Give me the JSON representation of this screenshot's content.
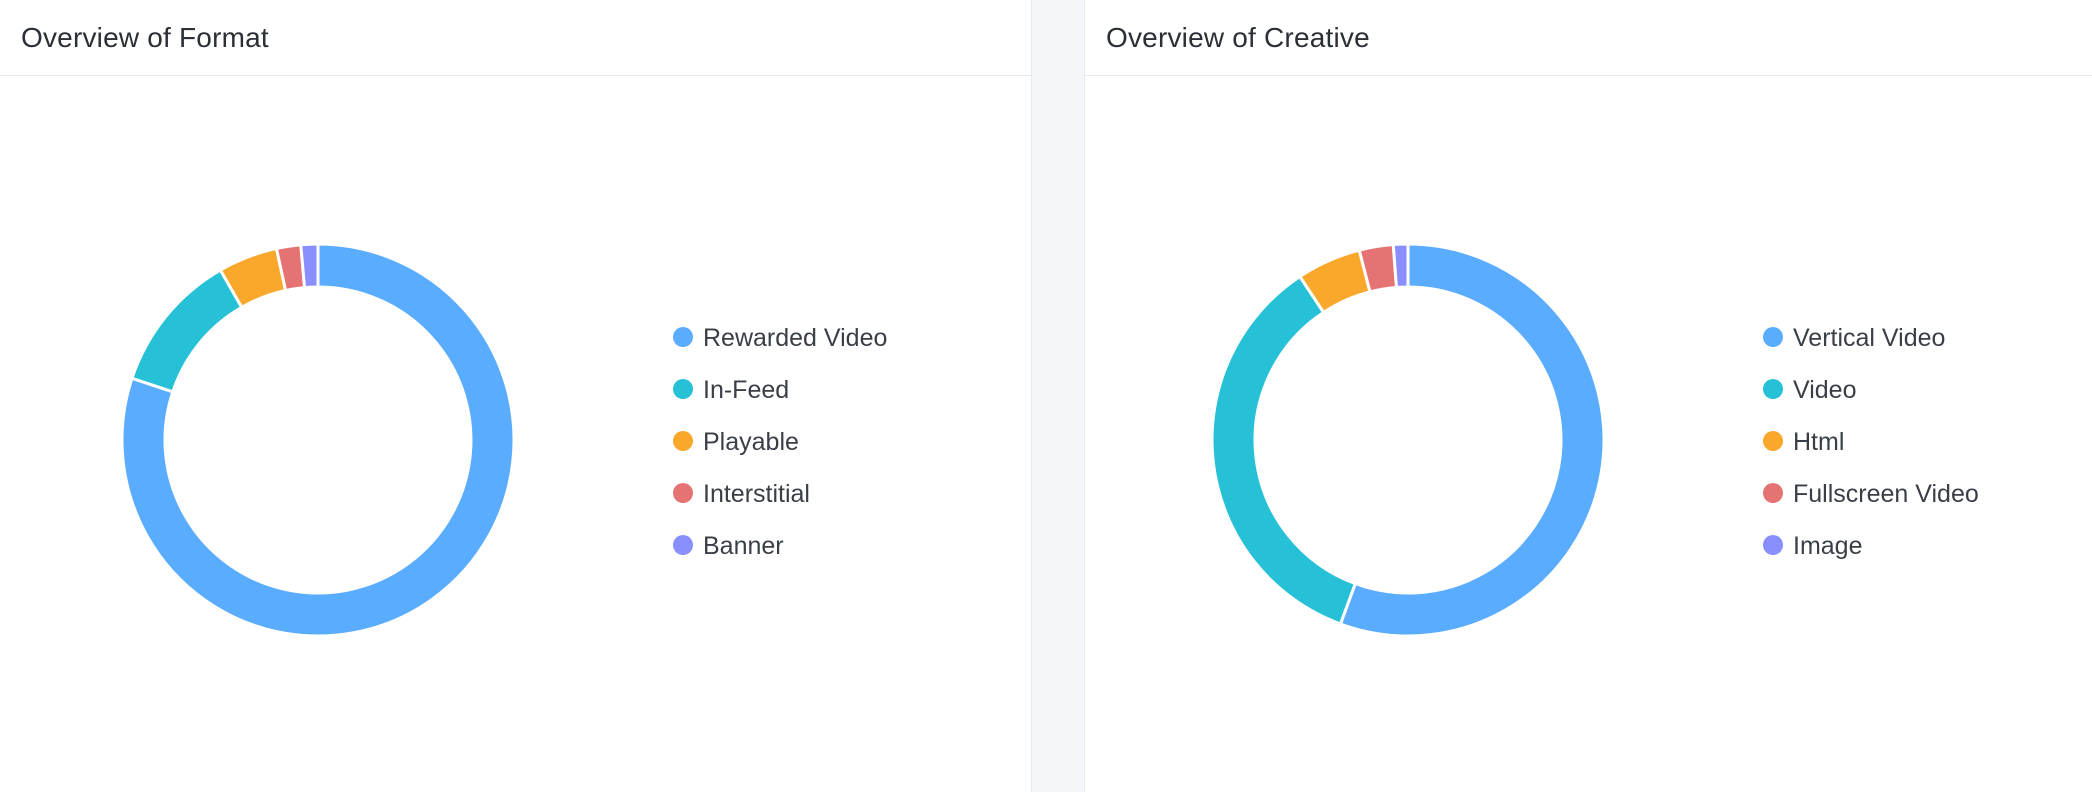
{
  "panels": [
    {
      "title": "Overview of Format",
      "colors": [
        "#5aacff",
        "#26c1d6",
        "#f9a82c",
        "#e57373",
        "#8a8fff"
      ]
    },
    {
      "title": "Overview of Creative",
      "colors": [
        "#5aacff",
        "#26c1d6",
        "#f9a82c",
        "#e57373",
        "#8a8fff"
      ]
    }
  ],
  "chart_data": [
    {
      "type": "pie",
      "variant": "donut",
      "title": "Overview of Format",
      "legend_position": "right",
      "categories": [
        "Rewarded Video",
        "In-Feed",
        "Playable",
        "Interstitial",
        "Banner"
      ],
      "values": [
        80.1,
        11.6,
        4.9,
        2.0,
        1.4
      ]
    },
    {
      "type": "pie",
      "variant": "donut",
      "title": "Overview of Creative",
      "legend_position": "right",
      "categories": [
        "Vertical Video",
        "Video",
        "Html",
        "Fullscreen Video",
        "Image"
      ],
      "values": [
        55.6,
        35.1,
        5.3,
        2.8,
        1.2
      ]
    }
  ]
}
